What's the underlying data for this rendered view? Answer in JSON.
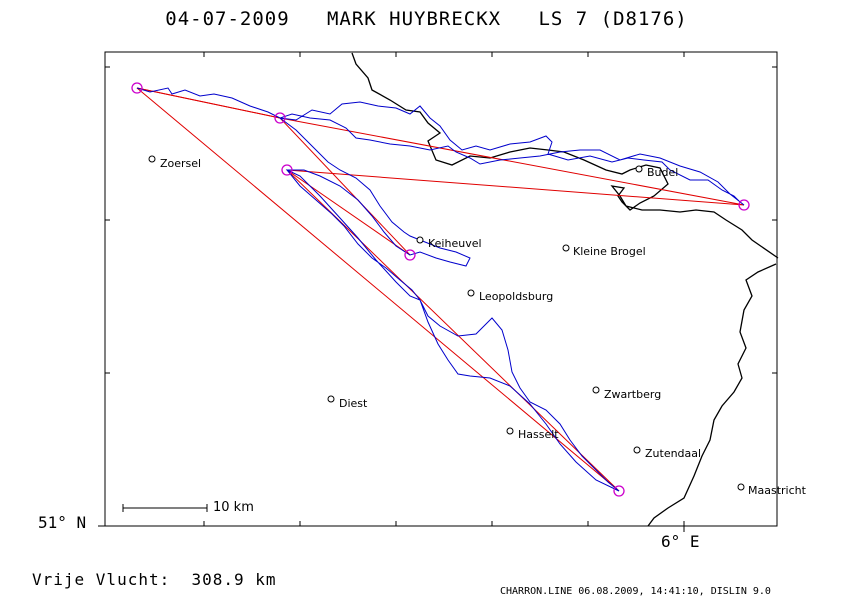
{
  "header": {
    "date": "04-07-2009",
    "pilot": "MARK HUYBRECKX",
    "glider": "LS 7 (D8176)"
  },
  "axes": {
    "lat_label": "51° N",
    "lon_label": "6° E"
  },
  "scale": {
    "label": "10 km"
  },
  "cities": [
    {
      "name": "Zoersel"
    },
    {
      "name": "Budel"
    },
    {
      "name": "Keiheuvel"
    },
    {
      "name": "Kleine Brogel"
    },
    {
      "name": "Leopoldsburg"
    },
    {
      "name": "Zwartberg"
    },
    {
      "name": "Diest"
    },
    {
      "name": "Hasselt"
    },
    {
      "name": "Zutendaal"
    },
    {
      "name": "Maastricht"
    }
  ],
  "footer": {
    "distance_label": "Vrije Vlucht:",
    "distance_value": "308.9 km",
    "credits": "CHARRON.LINE 06.08.2009, 14:41:10, DISLIN 9.0"
  },
  "colors": {
    "track": "#0000cc",
    "legs": "#e00000",
    "turnpoints": "#cc00cc",
    "border": "#000000"
  }
}
